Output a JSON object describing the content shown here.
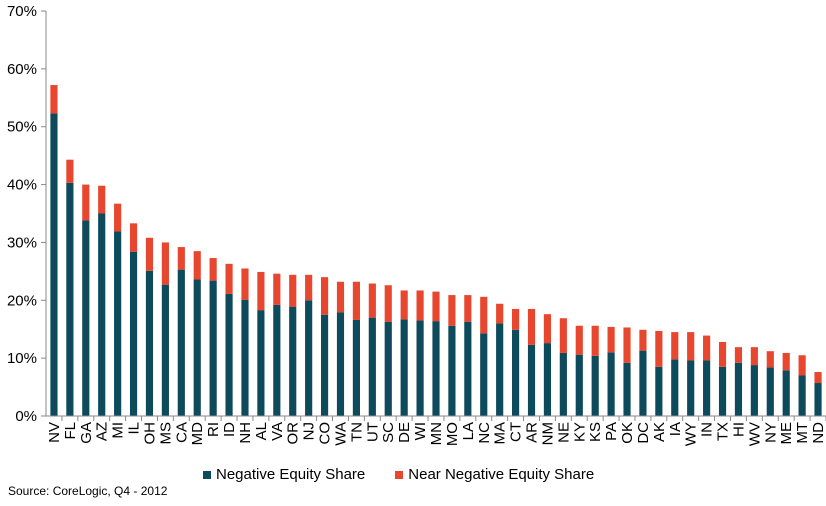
{
  "chart_data": {
    "type": "bar",
    "stacked": true,
    "title": "",
    "xlabel": "",
    "ylabel": "",
    "ylim": [
      0,
      70
    ],
    "yticks": [
      0,
      10,
      20,
      30,
      40,
      50,
      60,
      70
    ],
    "ytick_format": "percent",
    "grid": false,
    "legend_position": "bottom",
    "categories": [
      "NV",
      "FL",
      "GA",
      "AZ",
      "MI",
      "IL",
      "OH",
      "MS",
      "CA",
      "MD",
      "RI",
      "ID",
      "NH",
      "AL",
      "VA",
      "OR",
      "NJ",
      "CO",
      "WA",
      "TN",
      "UT",
      "SC",
      "DE",
      "WI",
      "MN",
      "MO",
      "LA",
      "NC",
      "MA",
      "CT",
      "AR",
      "NM",
      "NE",
      "KY",
      "KS",
      "PA",
      "OK",
      "DC",
      "AK",
      "IA",
      "WY",
      "IN",
      "TX",
      "HI",
      "WV",
      "NY",
      "ME",
      "MT",
      "ND"
    ],
    "series": [
      {
        "name": "Negative Equity Share",
        "color": "#0d4a5c",
        "values": [
          52.3,
          40.3,
          33.8,
          35.0,
          31.9,
          28.4,
          25.1,
          22.7,
          25.3,
          23.6,
          23.4,
          21.1,
          20.1,
          18.3,
          19.2,
          18.9,
          20.0,
          17.5,
          17.9,
          16.6,
          17.0,
          16.3,
          16.7,
          16.5,
          16.4,
          15.6,
          16.3,
          14.3,
          16.0,
          14.9,
          12.3,
          12.6,
          10.9,
          10.6,
          10.4,
          11.0,
          9.2,
          11.3,
          8.5,
          9.8,
          9.6,
          9.6,
          8.5,
          9.2,
          8.8,
          8.4,
          7.9,
          7.0,
          5.7
        ]
      },
      {
        "name": "Near Negative Equity Share",
        "color": "#e8472f",
        "values": [
          4.9,
          4.0,
          6.2,
          4.8,
          4.8,
          4.9,
          5.7,
          7.3,
          3.9,
          4.9,
          3.9,
          5.2,
          5.4,
          6.6,
          5.4,
          5.5,
          4.4,
          6.5,
          5.3,
          6.6,
          5.9,
          6.3,
          5.0,
          5.2,
          5.1,
          5.3,
          4.6,
          6.3,
          3.4,
          3.6,
          6.2,
          5.0,
          6.0,
          5.0,
          5.2,
          4.4,
          6.1,
          3.6,
          6.2,
          4.7,
          4.9,
          4.3,
          4.3,
          2.7,
          3.1,
          2.8,
          3.0,
          3.5,
          1.9
        ]
      }
    ],
    "source": "Source: CoreLogic, Q4 - 2012"
  }
}
